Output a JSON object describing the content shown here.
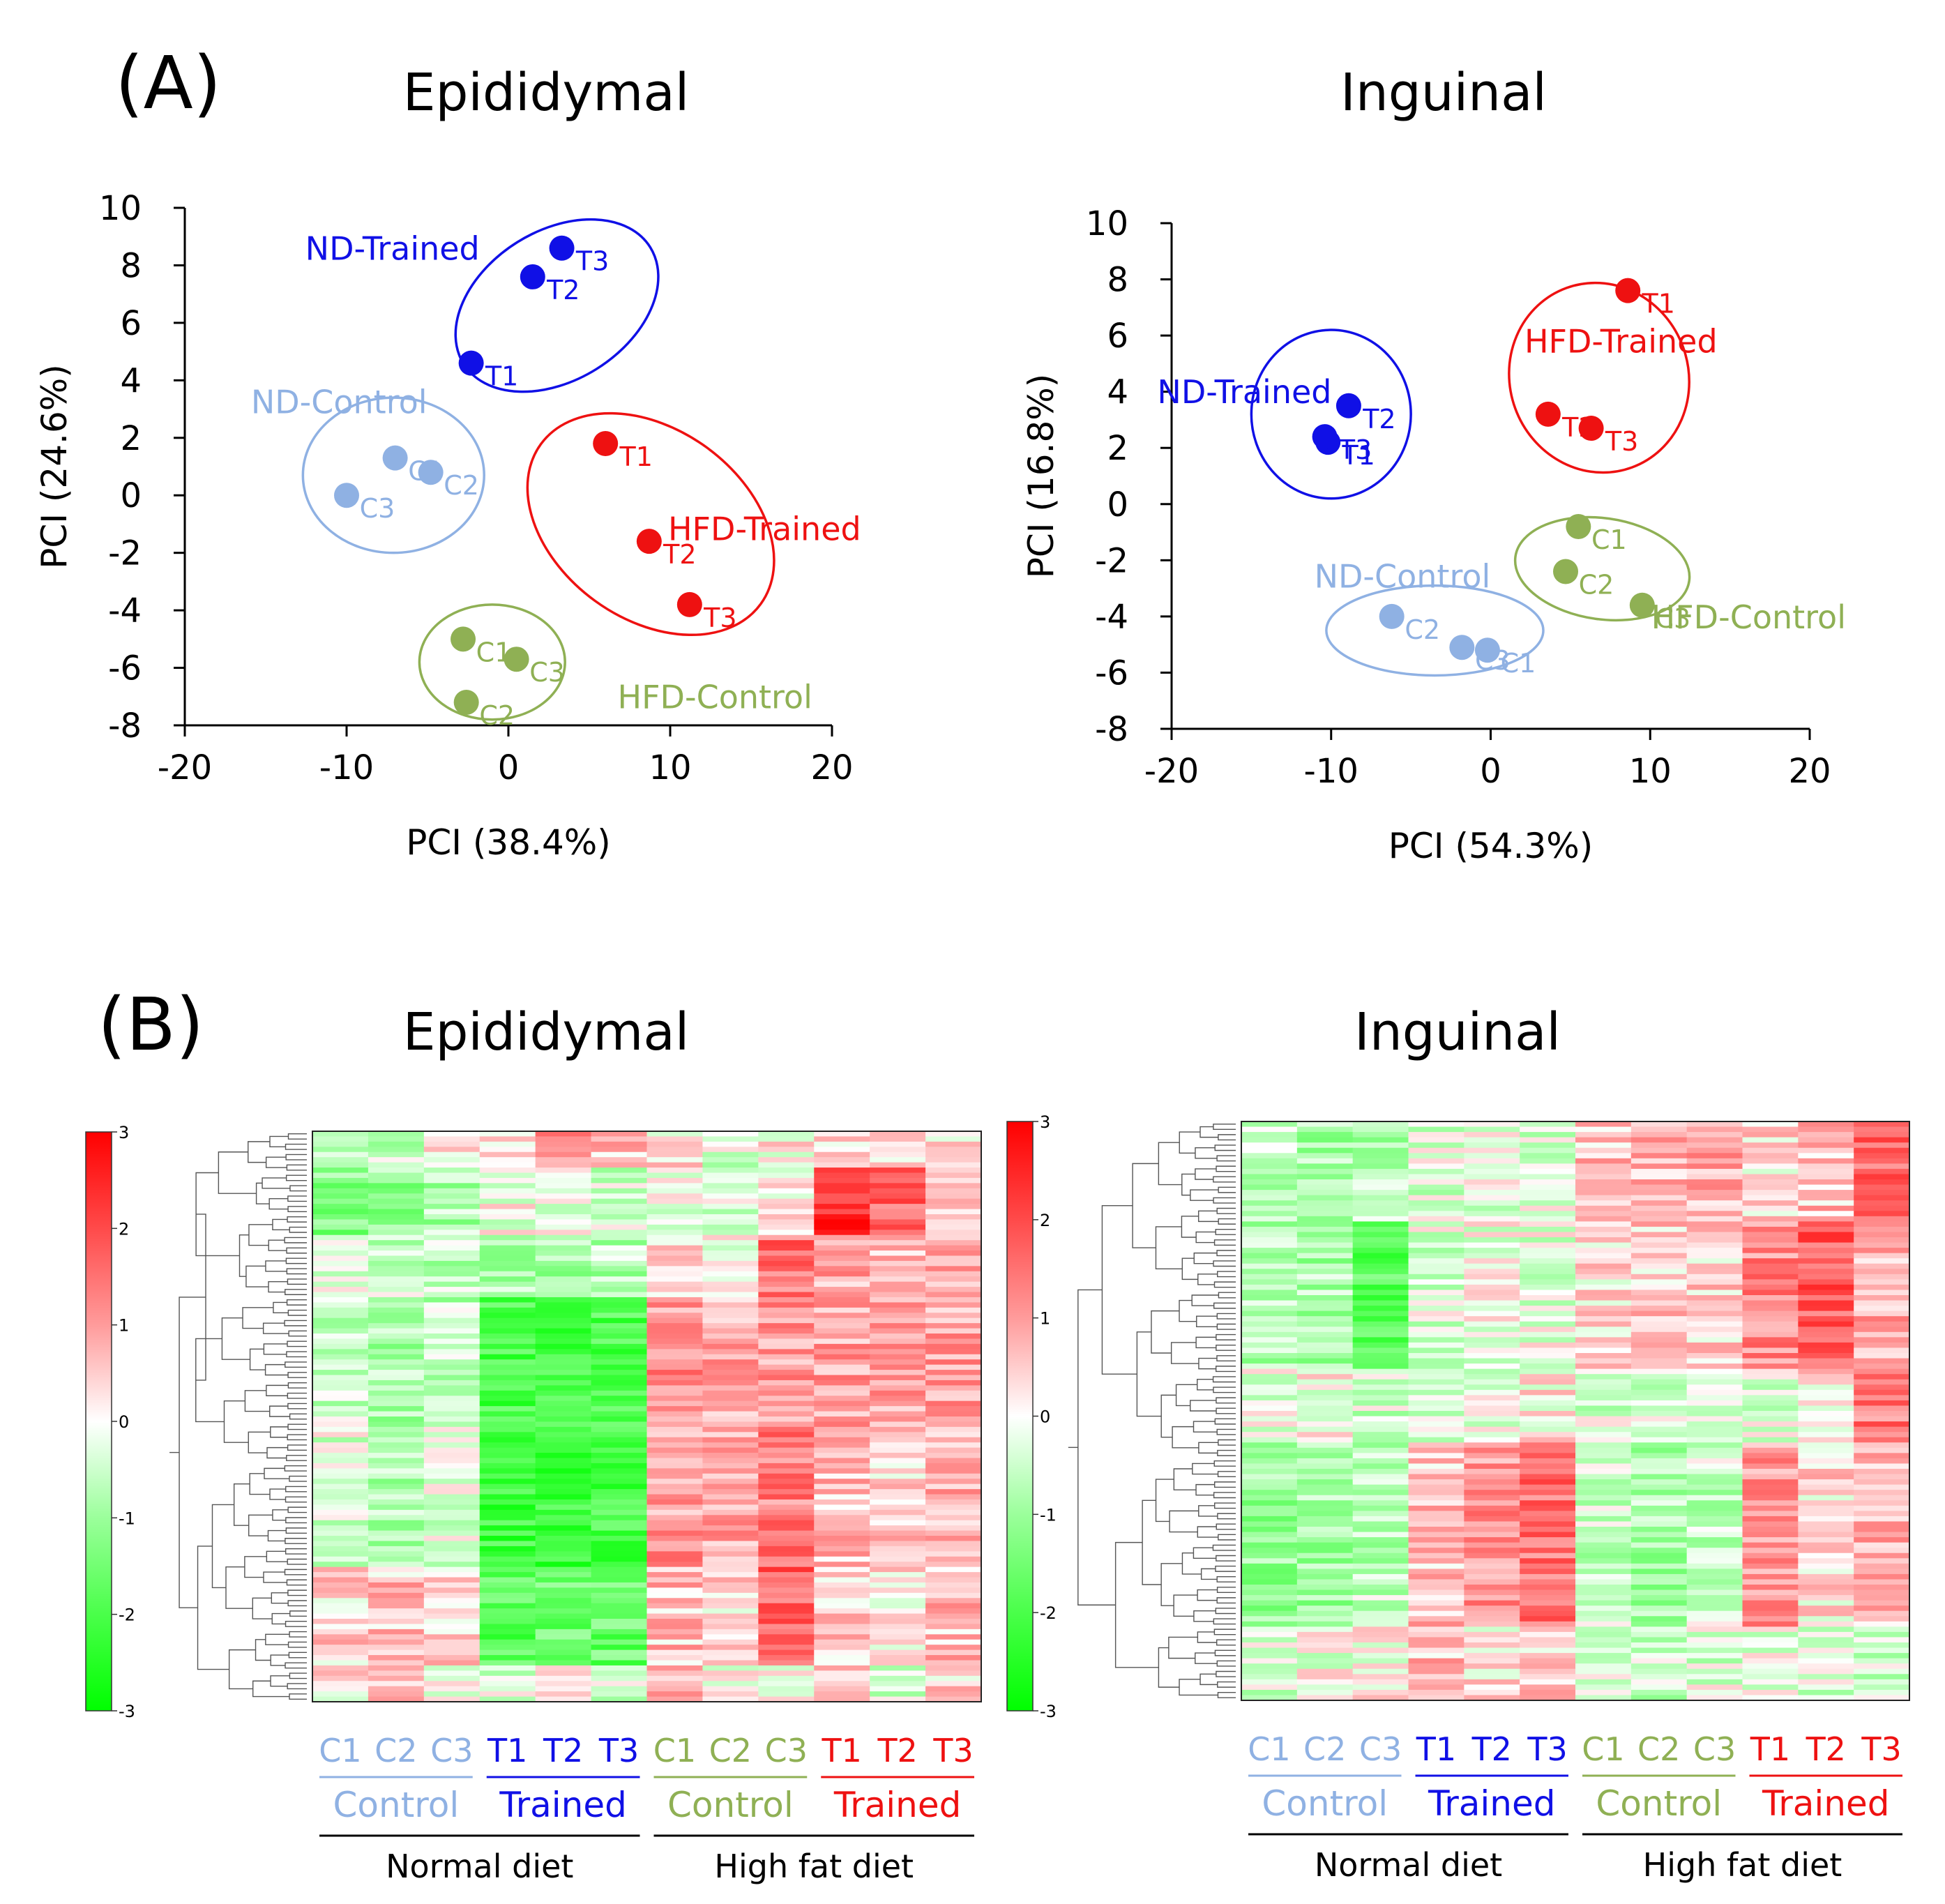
{
  "colors": {
    "nd_control": "#8fb1e3",
    "nd_trained": "#1010e6",
    "hfd_control": "#8fb054",
    "hfd_trained": "#ee1111",
    "axis": "#000000"
  },
  "panel_a": {
    "label": "(A)"
  },
  "panel_b": {
    "label": "(B)"
  },
  "chart_data": [
    {
      "type": "scatter",
      "title": "Epididymal",
      "xlabel": "PCI (38.4%)",
      "ylabel": "PCI (24.6%)",
      "xlim": [
        -20,
        20
      ],
      "ylim": [
        -8,
        10
      ],
      "xticks": [
        "-20",
        "-10",
        "0",
        "10",
        "20"
      ],
      "yticks": [
        "10",
        "8",
        "6",
        "4",
        "2",
        "0",
        "-2",
        "-4",
        "-6",
        "-8"
      ],
      "series": [
        {
          "name": "ND-Trained",
          "color": "nd_trained",
          "points": [
            {
              "label": "T1",
              "x": -2.3,
              "y": 4.6
            },
            {
              "label": "T2",
              "x": 1.5,
              "y": 7.6
            },
            {
              "label": "T3",
              "x": 3.3,
              "y": 8.6
            }
          ]
        },
        {
          "name": "ND-Control",
          "color": "nd_control",
          "points": [
            {
              "label": "C1",
              "x": -7.0,
              "y": 1.3
            },
            {
              "label": "C2",
              "x": -4.8,
              "y": 0.8
            },
            {
              "label": "C3",
              "x": -10.0,
              "y": 0.0
            }
          ]
        },
        {
          "name": "HFD-Trained",
          "color": "hfd_trained",
          "points": [
            {
              "label": "T1",
              "x": 6.0,
              "y": 1.8
            },
            {
              "label": "T2",
              "x": 8.7,
              "y": -1.6
            },
            {
              "label": "T3",
              "x": 11.2,
              "y": -3.8
            }
          ]
        },
        {
          "name": "HFD-Control",
          "color": "hfd_control",
          "points": [
            {
              "label": "C1",
              "x": -2.8,
              "y": -5.0
            },
            {
              "label": "C2",
              "x": -2.6,
              "y": -7.2
            },
            {
              "label": "C3",
              "x": 0.5,
              "y": -5.7
            }
          ]
        }
      ]
    },
    {
      "type": "scatter",
      "title": "Inguinal",
      "xlabel": "PCI (54.3%)",
      "ylabel": "PCI (16.8%)",
      "xlim": [
        -20,
        20
      ],
      "ylim": [
        -8,
        10
      ],
      "xticks": [
        "-20",
        "-10",
        "0",
        "10",
        "20"
      ],
      "yticks": [
        "10",
        "8",
        "6",
        "4",
        "2",
        "0",
        "-2",
        "-4",
        "-6",
        "-8"
      ],
      "series": [
        {
          "name": "ND-Trained",
          "color": "nd_trained",
          "points": [
            {
              "label": "T1",
              "x": -10.2,
              "y": 2.2
            },
            {
              "label": "T2",
              "x": -8.9,
              "y": 3.5
            },
            {
              "label": "T3",
              "x": -10.4,
              "y": 2.4
            }
          ]
        },
        {
          "name": "HFD-Trained",
          "color": "hfd_trained",
          "points": [
            {
              "label": "T1",
              "x": 8.6,
              "y": 7.6
            },
            {
              "label": "T2",
              "x": 3.6,
              "y": 3.2
            },
            {
              "label": "T3",
              "x": 6.3,
              "y": 2.7
            }
          ]
        },
        {
          "name": "ND-Control",
          "color": "nd_control",
          "points": [
            {
              "label": "C1",
              "x": -0.2,
              "y": -5.2
            },
            {
              "label": "C2",
              "x": -6.2,
              "y": -4.0
            },
            {
              "label": "C3",
              "x": -1.8,
              "y": -5.1
            }
          ]
        },
        {
          "name": "HFD-Control",
          "color": "hfd_control",
          "points": [
            {
              "label": "C1",
              "x": 5.5,
              "y": -0.8
            },
            {
              "label": "C2",
              "x": 4.7,
              "y": -2.4
            },
            {
              "label": "C3",
              "x": 9.5,
              "y": -3.6
            }
          ]
        }
      ]
    },
    {
      "type": "heatmap",
      "title": "Epididymal",
      "columns": [
        "C1",
        "C2",
        "C3",
        "T1",
        "T2",
        "T3",
        "C1",
        "C2",
        "C3",
        "T1",
        "T2",
        "T3"
      ],
      "column_colors": [
        "nd_control",
        "nd_control",
        "nd_control",
        "nd_trained",
        "nd_trained",
        "nd_trained",
        "hfd_control",
        "hfd_control",
        "hfd_control",
        "hfd_trained",
        "hfd_trained",
        "hfd_trained"
      ],
      "groups": [
        {
          "label": "Control",
          "color": "nd_control",
          "span": [
            0,
            2
          ]
        },
        {
          "label": "Trained",
          "color": "nd_trained",
          "span": [
            3,
            5
          ]
        },
        {
          "label": "Control",
          "color": "hfd_control",
          "span": [
            6,
            8
          ]
        },
        {
          "label": "Trained",
          "color": "hfd_trained",
          "span": [
            9,
            11
          ]
        }
      ],
      "diets": [
        {
          "label": "Normal diet",
          "span": [
            0,
            5
          ]
        },
        {
          "label": "High fat diet",
          "span": [
            6,
            11
          ]
        }
      ],
      "color_scale": {
        "min": -3,
        "max": 3,
        "ticks": [
          "3",
          "2",
          "1",
          "0",
          "-1",
          "-2",
          "-3"
        ]
      },
      "rows": 110,
      "row_sections": [
        {
          "rows": [
            0,
            6
          ],
          "levels": [
            -0.3,
            -0.6,
            0.2,
            0.5,
            1.3,
            0.6,
            0.2,
            -0.3,
            0.1,
            0.5,
            0.3,
            0.4
          ]
        },
        {
          "rows": [
            7,
            19
          ],
          "levels": [
            -1.2,
            -1.0,
            -0.8,
            -0.1,
            -0.2,
            -0.4,
            0.0,
            -0.4,
            0.0,
            2.4,
            1.6,
            0.4
          ]
        },
        {
          "rows": [
            20,
            31
          ],
          "levels": [
            -0.3,
            -0.5,
            -0.6,
            -0.7,
            -0.9,
            -0.7,
            0.2,
            -0.2,
            1.5,
            0.8,
            0.6,
            0.7
          ]
        },
        {
          "rows": [
            32,
            56
          ],
          "levels": [
            -0.4,
            -0.8,
            -0.6,
            -2.0,
            -2.2,
            -2.0,
            1.1,
            0.8,
            1.0,
            0.9,
            0.8,
            0.9
          ]
        },
        {
          "rows": [
            57,
            83
          ],
          "levels": [
            -0.3,
            -0.7,
            -0.3,
            -2.1,
            -2.2,
            -2.0,
            1.0,
            0.8,
            1.3,
            0.6,
            0.5,
            0.7
          ]
        },
        {
          "rows": [
            84,
            102
          ],
          "levels": [
            0.4,
            0.6,
            0.5,
            -1.8,
            -1.6,
            -1.6,
            0.6,
            0.4,
            1.7,
            0.5,
            0.2,
            0.6
          ]
        },
        {
          "rows": [
            103,
            109
          ],
          "levels": [
            0.2,
            0.8,
            0.1,
            -0.4,
            0.3,
            -0.5,
            0.6,
            0.1,
            0.2,
            0.3,
            -0.3,
            0.4
          ]
        }
      ]
    },
    {
      "type": "heatmap",
      "title": "Inguinal",
      "columns": [
        "C1",
        "C2",
        "C3",
        "T1",
        "T2",
        "T3",
        "C1",
        "C2",
        "C3",
        "T1",
        "T2",
        "T3"
      ],
      "column_colors": [
        "nd_control",
        "nd_control",
        "nd_control",
        "nd_trained",
        "nd_trained",
        "nd_trained",
        "hfd_control",
        "hfd_control",
        "hfd_control",
        "hfd_trained",
        "hfd_trained",
        "hfd_trained"
      ],
      "groups": [
        {
          "label": "Control",
          "color": "nd_control",
          "span": [
            0,
            2
          ]
        },
        {
          "label": "Trained",
          "color": "nd_trained",
          "span": [
            3,
            5
          ]
        },
        {
          "label": "Control",
          "color": "hfd_control",
          "span": [
            6,
            8
          ]
        },
        {
          "label": "Trained",
          "color": "hfd_trained",
          "span": [
            9,
            11
          ]
        }
      ],
      "diets": [
        {
          "label": "Normal diet",
          "span": [
            0,
            5
          ]
        },
        {
          "label": "High fat diet",
          "span": [
            6,
            11
          ]
        }
      ],
      "color_scale": {
        "min": -3,
        "max": 3,
        "ticks": [
          "3",
          "2",
          "1",
          "0",
          "-1",
          "-2",
          "-3"
        ]
      },
      "rows": 110,
      "row_sections": [
        {
          "rows": [
            0,
            18
          ],
          "levels": [
            -0.6,
            -0.8,
            -0.7,
            -0.3,
            -0.2,
            -0.3,
            0.6,
            0.7,
            0.8,
            0.3,
            0.6,
            1.6
          ]
        },
        {
          "rows": [
            19,
            46
          ],
          "levels": [
            -0.7,
            -0.8,
            -1.8,
            -0.3,
            -0.1,
            -0.2,
            0.3,
            0.5,
            0.4,
            1.2,
            1.8,
            0.8
          ]
        },
        {
          "rows": [
            47,
            60
          ],
          "levels": [
            -0.2,
            0.0,
            -0.4,
            -0.3,
            -0.3,
            0.2,
            -0.3,
            -0.4,
            -0.3,
            -0.2,
            0.3,
            1.4
          ]
        },
        {
          "rows": [
            61,
            95
          ],
          "levels": [
            -1.0,
            -0.9,
            -0.6,
            0.6,
            1.1,
            1.5,
            -0.5,
            -0.8,
            -0.5,
            1.0,
            0.3,
            0.7
          ]
        },
        {
          "rows": [
            96,
            109
          ],
          "levels": [
            -0.3,
            -0.1,
            0.1,
            0.6,
            0.2,
            0.5,
            -0.4,
            -0.5,
            -0.3,
            -0.2,
            -0.3,
            -0.5
          ]
        }
      ]
    }
  ]
}
